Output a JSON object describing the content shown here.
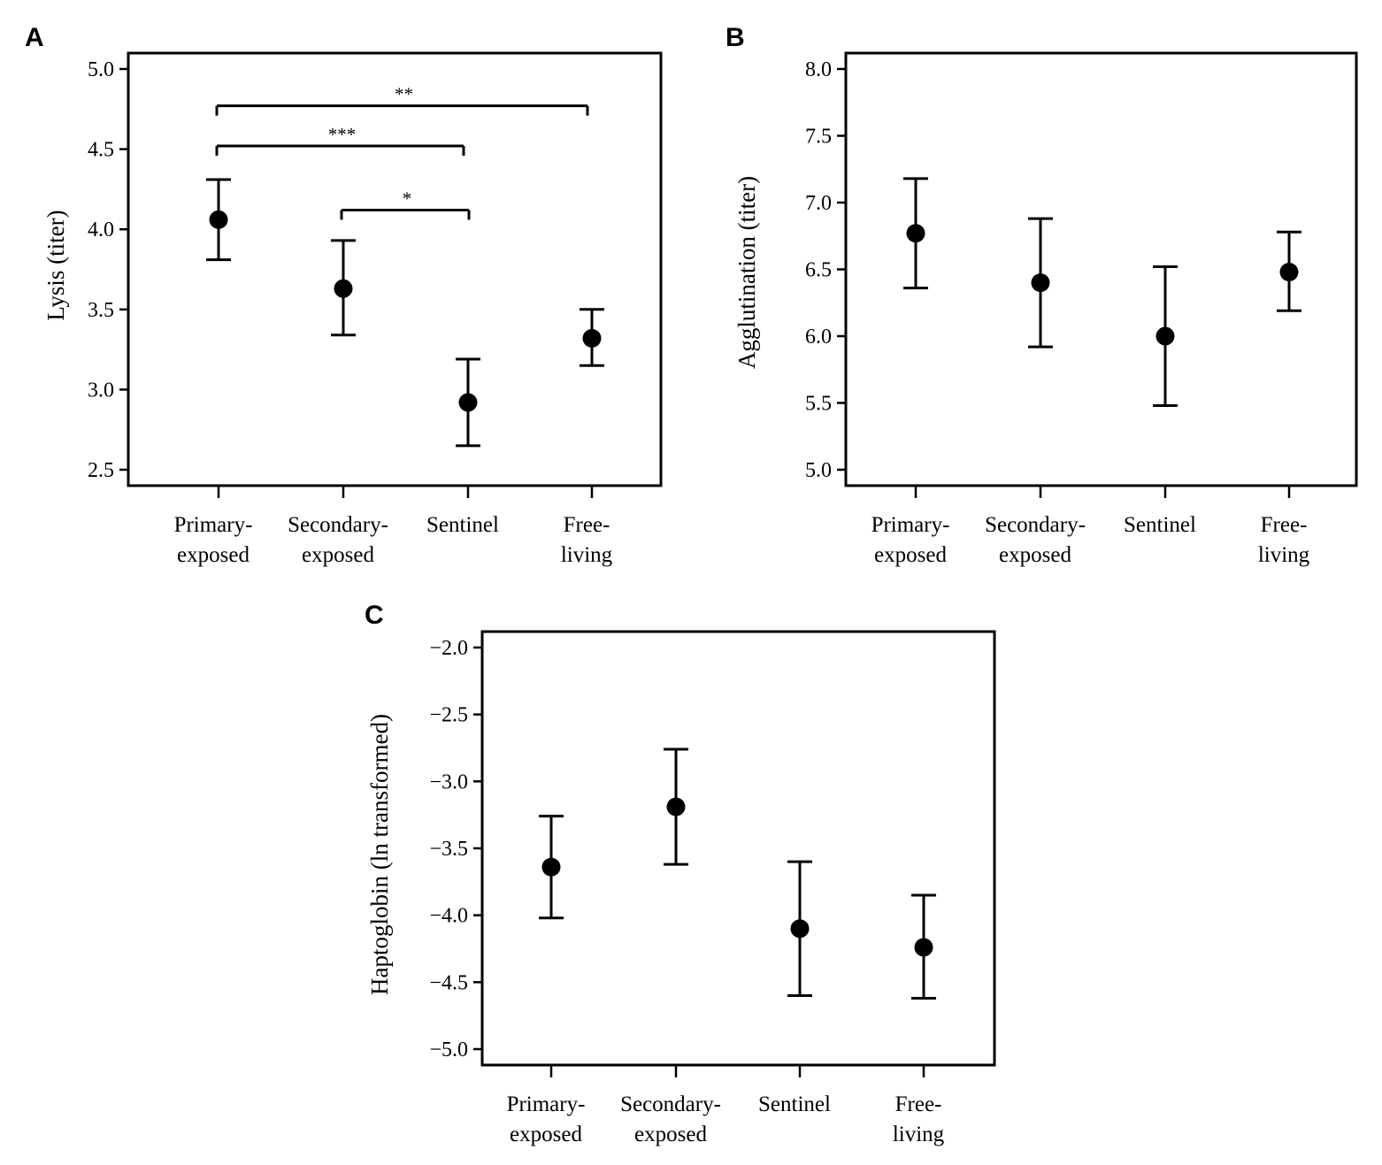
{
  "chart_data": [
    {
      "panel": "A",
      "type": "scatter",
      "style": "mean-with-error-bars",
      "ylabel": "Lysis (titer)",
      "xlabel": "",
      "ylim": [
        2.5,
        5.0
      ],
      "yticks": [
        "2.5",
        "3.0",
        "3.5",
        "4.0",
        "4.5",
        "5.0"
      ],
      "categories": [
        {
          "line1": "Primary-",
          "line2": "exposed"
        },
        {
          "line1": "Secondary-",
          "line2": "exposed"
        },
        {
          "line1": "Sentinel",
          "line2": ""
        },
        {
          "line1": "Free-",
          "line2": "living"
        }
      ],
      "means": [
        4.06,
        3.63,
        2.92,
        3.32
      ],
      "lower": [
        3.81,
        3.34,
        2.65,
        3.15
      ],
      "upper": [
        4.31,
        3.93,
        3.19,
        3.5
      ],
      "significance": [
        {
          "from": 0,
          "to": 3,
          "y": 4.77,
          "label": "**"
        },
        {
          "from": 0,
          "to": 2,
          "y": 4.52,
          "label": "***"
        },
        {
          "from": 1,
          "to": 2,
          "y": 4.12,
          "label": "*"
        }
      ]
    },
    {
      "panel": "B",
      "type": "scatter",
      "style": "mean-with-error-bars",
      "ylabel": "Agglutination (titer)",
      "xlabel": "",
      "ylim": [
        5.0,
        8.0
      ],
      "yticks": [
        "5.0",
        "5.5",
        "6.0",
        "6.5",
        "7.0",
        "7.5",
        "8.0"
      ],
      "categories": [
        {
          "line1": "Primary-",
          "line2": "exposed"
        },
        {
          "line1": "Secondary-",
          "line2": "exposed"
        },
        {
          "line1": "Sentinel",
          "line2": ""
        },
        {
          "line1": "Free-",
          "line2": "living"
        }
      ],
      "means": [
        6.77,
        6.4,
        6.0,
        6.48
      ],
      "lower": [
        6.36,
        5.92,
        5.48,
        6.19
      ],
      "upper": [
        7.18,
        6.88,
        6.52,
        6.78
      ],
      "significance": []
    },
    {
      "panel": "C",
      "type": "scatter",
      "style": "mean-with-error-bars",
      "ylabel": "Haptoglobin (ln transformed)",
      "xlabel": "",
      "ylim": [
        -5.0,
        -2.0
      ],
      "yticks": [
        "−5.0",
        "−4.5",
        "−4.0",
        "−3.5",
        "−3.0",
        "−2.5",
        "−2.0"
      ],
      "categories": [
        {
          "line1": "Primary-",
          "line2": "exposed"
        },
        {
          "line1": "Secondary-",
          "line2": "exposed"
        },
        {
          "line1": "Sentinel",
          "line2": ""
        },
        {
          "line1": "Free-",
          "line2": "living"
        }
      ],
      "means": [
        -3.64,
        -3.19,
        -4.1,
        -4.24
      ],
      "lower": [
        -4.02,
        -3.62,
        -4.6,
        -4.62
      ],
      "upper": [
        -3.26,
        -2.76,
        -3.6,
        -3.85
      ],
      "significance": []
    }
  ]
}
